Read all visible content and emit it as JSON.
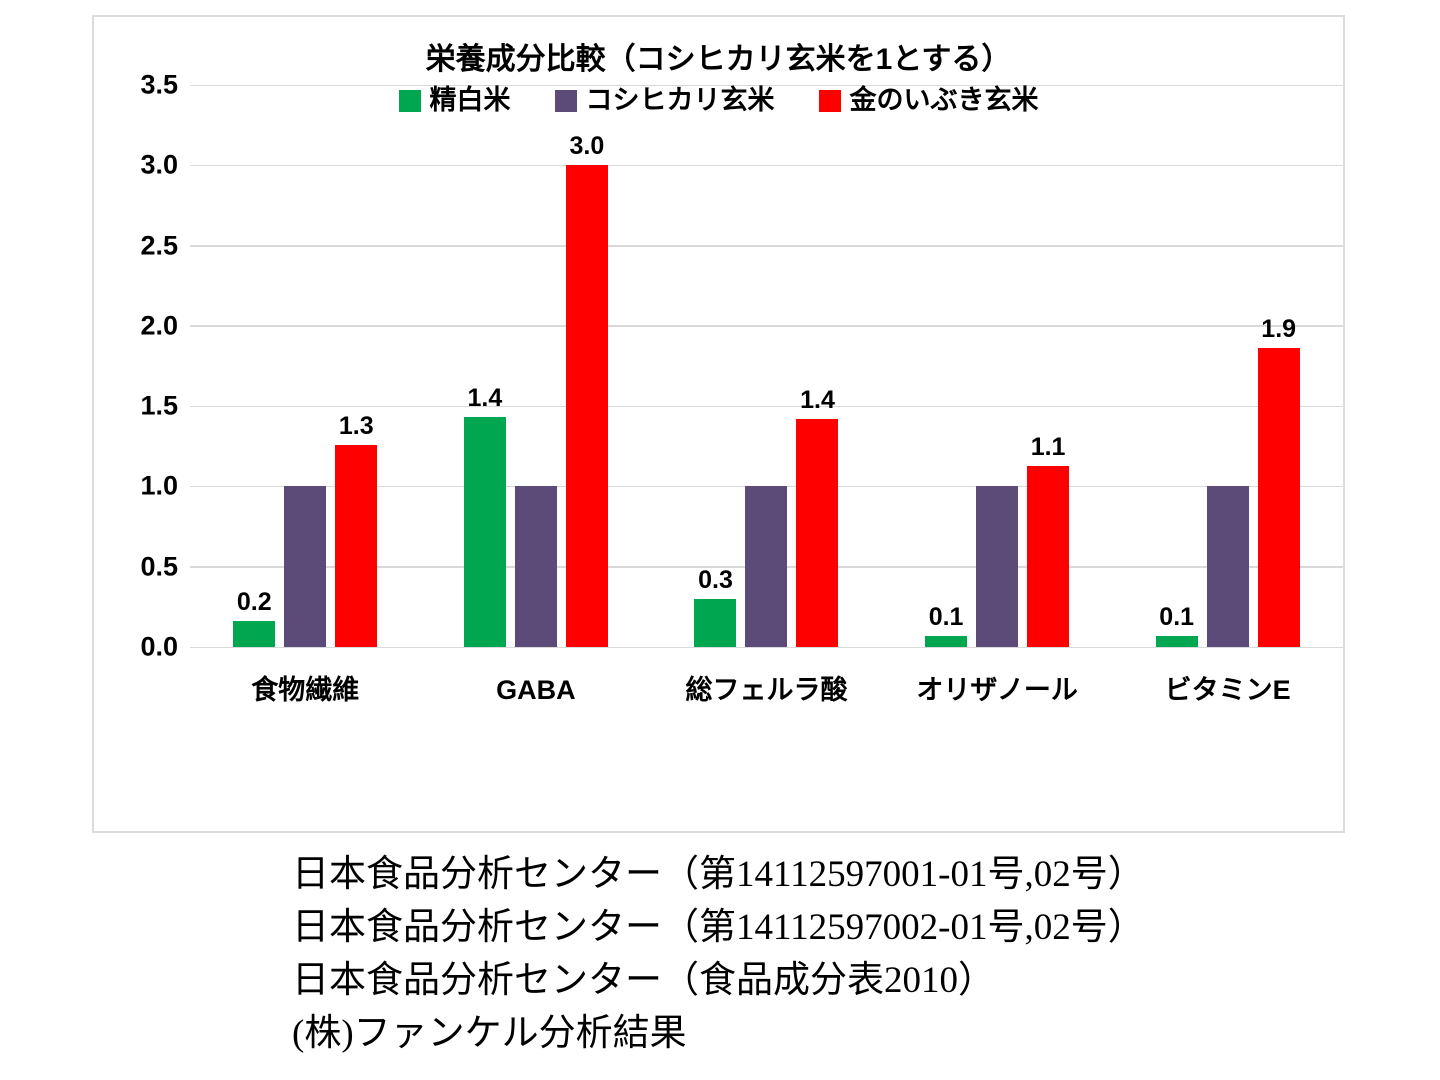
{
  "chart_data": {
    "type": "bar",
    "title": "栄養成分比較（コシヒカリ玄米を1とする）",
    "categories": [
      "食物繊維",
      "GABA",
      "総フェルラ酸",
      "オリザノール",
      "ビタミンE"
    ],
    "series": [
      {
        "name": "精白米",
        "color": "#00a650",
        "values": [
          0.2,
          1.4,
          0.3,
          0.1,
          0.1
        ],
        "bar_heights": [
          0.16,
          1.43,
          0.3,
          0.07,
          0.07
        ],
        "labels": [
          "0.2",
          "1.4",
          "0.3",
          "0.1",
          "0.1"
        ]
      },
      {
        "name": "コシヒカリ玄米",
        "color": "#5c4a78",
        "values": [
          1.0,
          1.0,
          1.0,
          1.0,
          1.0
        ],
        "bar_heights": [
          1.0,
          1.0,
          1.0,
          1.0,
          1.0
        ],
        "labels": [
          null,
          null,
          null,
          null,
          null
        ]
      },
      {
        "name": "金のいぶき玄米",
        "color": "#ff0000",
        "values": [
          1.3,
          3.0,
          1.4,
          1.1,
          1.9
        ],
        "bar_heights": [
          1.26,
          3.0,
          1.42,
          1.13,
          1.86
        ],
        "labels": [
          "1.3",
          "3.0",
          "1.4",
          "1.1",
          "1.9"
        ]
      }
    ],
    "ylim": [
      0,
      3.5
    ],
    "yticks": [
      "0.0",
      "0.5",
      "1.0",
      "1.5",
      "2.0",
      "2.5",
      "3.0",
      "3.5"
    ],
    "grid": true,
    "legend_position": "top-center",
    "grid_color": "#d9d9d9"
  },
  "sources": {
    "lines": [
      "日本食品分析センター（第14112597001-01号,02号）",
      "日本食品分析センター（第14112597002-01号,02号）",
      "日本食品分析センター（食品成分表2010）",
      "(株)ファンケル分析結果"
    ]
  }
}
